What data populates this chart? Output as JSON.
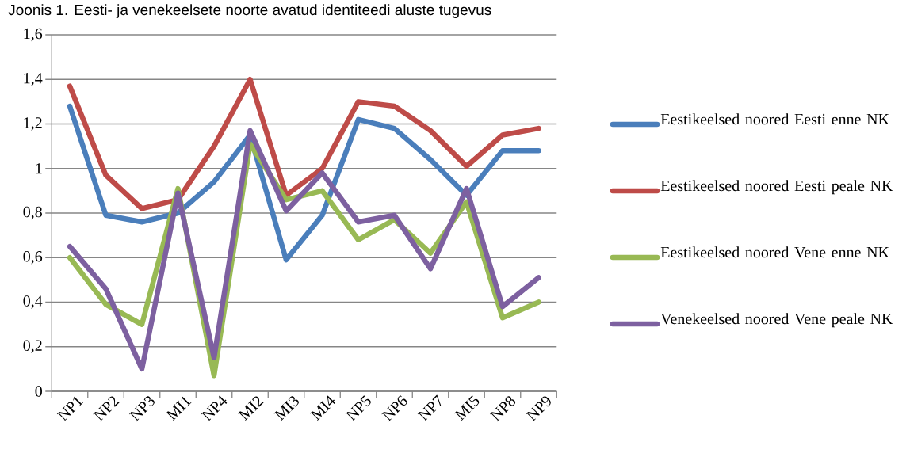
{
  "chart_data": {
    "type": "line",
    "title": "Joonis 1. Eesti- ja venekeelsete noorte avatud identiteedi aluste tugevus",
    "categories": [
      "NP1",
      "NP2",
      "NP3",
      "MI1",
      "NP4",
      "MI2",
      "MI3",
      "MI4",
      "NP5",
      "NP6",
      "NP7",
      "MI5",
      "NP8",
      "NP9"
    ],
    "series": [
      {
        "name": "Eestikeelsed noored Eesti enne NK",
        "color": "#4a7ebb",
        "values": [
          1.28,
          0.79,
          0.76,
          0.8,
          0.94,
          1.15,
          0.59,
          0.79,
          1.22,
          1.18,
          1.04,
          0.88,
          1.08,
          1.08
        ]
      },
      {
        "name": "Eestikeelsed noored Eesti peale NK",
        "color": "#be4b48",
        "values": [
          1.37,
          0.97,
          0.82,
          0.86,
          1.1,
          1.4,
          0.88,
          1.0,
          1.3,
          1.28,
          1.17,
          1.01,
          1.15,
          1.18
        ]
      },
      {
        "name": "Eestikeelsed noored Vene enne NK",
        "color": "#98b954",
        "values": [
          0.6,
          0.39,
          0.3,
          0.91,
          0.07,
          1.11,
          0.86,
          0.9,
          0.68,
          0.77,
          0.62,
          0.85,
          0.33,
          0.4
        ]
      },
      {
        "name": "Venekeelsed noored Vene peale NK",
        "color": "#7d60a0",
        "values": [
          0.65,
          0.46,
          0.1,
          0.89,
          0.15,
          1.17,
          0.81,
          0.98,
          0.76,
          0.79,
          0.55,
          0.91,
          0.38,
          0.51
        ]
      }
    ],
    "ylim": [
      0,
      1.6
    ],
    "yticks": [
      0,
      {
        "value": 0.2,
        "label": "0,2"
      },
      {
        "value": 0.4,
        "label": "0,4"
      },
      {
        "value": 0.6,
        "label": "0,6"
      },
      {
        "value": 0.8,
        "label": "0,8"
      },
      1,
      {
        "value": 1.2,
        "label": "1,2"
      },
      {
        "value": 1.4,
        "label": "1,4"
      },
      {
        "value": 1.6,
        "label": "1,6"
      }
    ],
    "grid": "y",
    "legend": "right",
    "marker": "none",
    "line_style": "solid"
  }
}
